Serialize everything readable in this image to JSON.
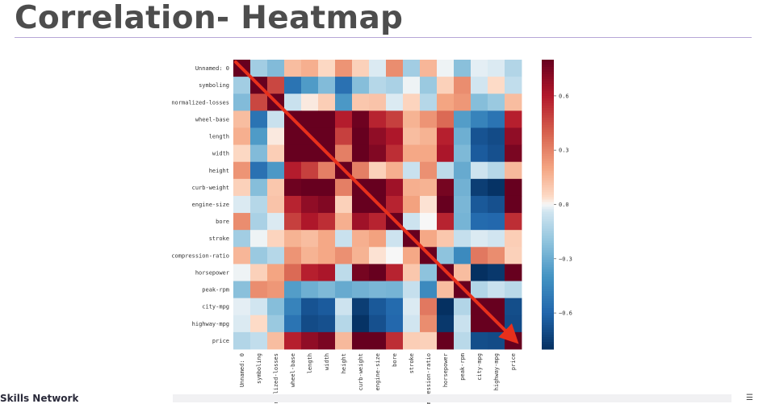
{
  "slide": {
    "title": "Correlation- Heatmap",
    "footer_brand": "Skills Network",
    "menu_icon": "hamburger-menu-icon"
  },
  "colors": {
    "title": "#4d4d4d",
    "rule": "#b7a6d6",
    "arrow": "#e8301c",
    "low": "#053061",
    "mid": "#f7f7f7",
    "high": "#67001f"
  },
  "arrow": {
    "from": [
      "Unnamed: 0",
      "Unnamed: 0"
    ],
    "to": [
      "price",
      "price"
    ]
  },
  "chart_data": {
    "type": "heatmap",
    "title": "",
    "colormap": "RdBu_r",
    "colorbar": {
      "ticks": [
        0.6,
        0.3,
        0.0,
        -0.3,
        -0.6
      ],
      "labels": [
        "0.6",
        "0.3",
        "0.0",
        "−0.3",
        "−0.6"
      ],
      "range": [
        -0.8,
        0.8
      ]
    },
    "labels": [
      "Unnamed: 0",
      "symboling",
      "normalized-losses",
      "wheel-base",
      "length",
      "width",
      "height",
      "curb-weight",
      "engine-size",
      "bore",
      "stroke",
      "compression-ratio",
      "horsepower",
      "peak-rpm",
      "city-mpg",
      "highway-mpg",
      "price"
    ],
    "values": [
      [
        1.0,
        -0.16,
        -0.24,
        0.13,
        0.17,
        0.05,
        0.25,
        0.07,
        -0.03,
        0.27,
        -0.16,
        0.15,
        -0.01,
        -0.22,
        -0.02,
        -0.03,
        -0.12
      ],
      [
        -0.16,
        1.0,
        0.47,
        -0.54,
        -0.37,
        -0.24,
        -0.55,
        -0.23,
        -0.11,
        -0.14,
        -0.01,
        -0.18,
        0.07,
        0.27,
        -0.04,
        0.04,
        -0.08
      ],
      [
        -0.24,
        0.47,
        1.0,
        -0.06,
        0.02,
        0.08,
        -0.38,
        0.1,
        0.11,
        -0.03,
        0.06,
        -0.11,
        0.2,
        0.24,
        -0.23,
        -0.18,
        0.13
      ],
      [
        0.13,
        -0.54,
        -0.06,
        1.0,
        0.88,
        0.81,
        0.59,
        0.78,
        0.57,
        0.49,
        0.16,
        0.25,
        0.37,
        -0.36,
        -0.47,
        -0.54,
        0.58
      ],
      [
        0.17,
        -0.37,
        0.02,
        0.88,
        1.0,
        0.86,
        0.49,
        0.88,
        0.69,
        0.61,
        0.13,
        0.16,
        0.58,
        -0.29,
        -0.67,
        -0.7,
        0.69
      ],
      [
        0.05,
        -0.24,
        0.08,
        0.81,
        0.86,
        1.0,
        0.31,
        0.87,
        0.73,
        0.54,
        0.19,
        0.19,
        0.62,
        -0.25,
        -0.64,
        -0.68,
        0.75
      ],
      [
        0.25,
        -0.55,
        -0.38,
        0.59,
        0.49,
        0.31,
        1.0,
        0.31,
        0.07,
        0.17,
        -0.06,
        0.26,
        -0.09,
        -0.31,
        -0.05,
        -0.11,
        0.14
      ],
      [
        0.07,
        -0.23,
        0.1,
        0.78,
        0.88,
        0.87,
        0.31,
        1.0,
        0.85,
        0.65,
        0.17,
        0.16,
        0.76,
        -0.28,
        -0.75,
        -0.79,
        0.83
      ],
      [
        -0.03,
        -0.11,
        0.11,
        0.57,
        0.69,
        0.73,
        0.07,
        0.85,
        1.0,
        0.57,
        0.21,
        0.03,
        0.82,
        -0.26,
        -0.65,
        -0.68,
        0.87
      ],
      [
        0.27,
        -0.14,
        -0.03,
        0.49,
        0.61,
        0.54,
        0.17,
        0.65,
        0.57,
        1.0,
        -0.05,
        0.0,
        0.57,
        -0.27,
        -0.58,
        -0.59,
        0.54
      ],
      [
        -0.16,
        -0.01,
        0.06,
        0.16,
        0.13,
        0.19,
        -0.06,
        0.17,
        0.21,
        -0.05,
        1.0,
        0.19,
        0.1,
        -0.07,
        -0.03,
        -0.04,
        0.08
      ],
      [
        0.15,
        -0.18,
        -0.11,
        0.25,
        0.16,
        0.19,
        0.26,
        0.16,
        0.03,
        0.0,
        0.19,
        1.0,
        -0.21,
        -0.44,
        0.33,
        0.27,
        0.07
      ],
      [
        -0.01,
        0.07,
        0.2,
        0.37,
        0.58,
        0.62,
        -0.09,
        0.76,
        0.82,
        0.57,
        0.1,
        -0.21,
        1.0,
        0.13,
        -0.8,
        -0.77,
        0.81
      ],
      [
        -0.22,
        0.27,
        0.24,
        -0.36,
        -0.29,
        -0.25,
        -0.31,
        -0.28,
        -0.26,
        -0.27,
        -0.07,
        -0.44,
        0.13,
        1.0,
        -0.12,
        -0.06,
        -0.1
      ],
      [
        -0.02,
        -0.04,
        -0.23,
        -0.47,
        -0.67,
        -0.64,
        -0.05,
        -0.75,
        -0.65,
        -0.58,
        -0.03,
        0.33,
        -0.8,
        -0.12,
        1.0,
        0.97,
        -0.69
      ],
      [
        -0.03,
        0.04,
        -0.18,
        -0.54,
        -0.7,
        -0.68,
        -0.11,
        -0.79,
        -0.68,
        -0.59,
        -0.04,
        0.27,
        -0.77,
        -0.06,
        0.97,
        1.0,
        -0.7
      ],
      [
        -0.12,
        -0.08,
        0.13,
        0.58,
        0.69,
        0.75,
        0.14,
        0.83,
        0.87,
        0.54,
        0.08,
        0.07,
        0.81,
        -0.1,
        -0.69,
        -0.7,
        1.0
      ]
    ]
  }
}
